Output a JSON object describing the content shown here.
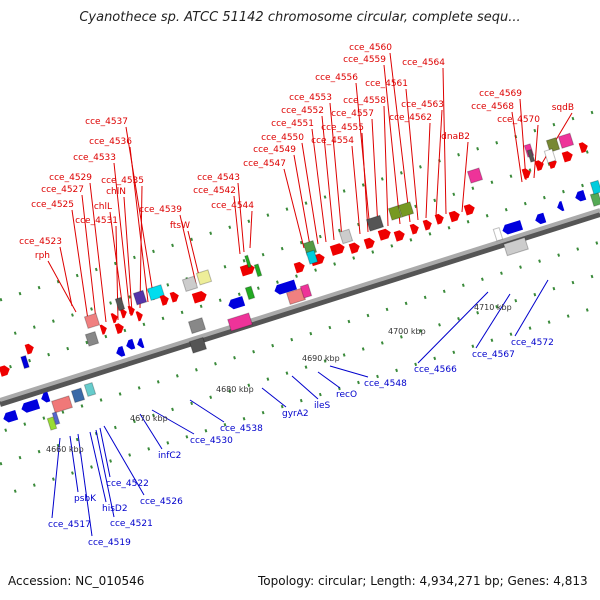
{
  "title": "Cyanothece sp. ATCC 51142 chromosome circular, complete sequ...",
  "footer": {
    "accession": "Accession: NC_010546",
    "summary": "Topology: circular; Length: 4,934,271 bp; Genes: 4,813"
  },
  "colors": {
    "label_forward": "#dd0000",
    "label_reverse": "#0000cc",
    "gene_forward": "#ee0000",
    "gene_reverse": "#0000dd",
    "backbone": "#888888",
    "tick": "#3a8a3a"
  },
  "scale_labels": [
    "4660 kbp",
    "4670 kbp",
    "4680 kbp",
    "4690 kbp",
    "4700 kbp",
    "4710 kbp"
  ],
  "forward_labels": [
    "cce_4523",
    "rph",
    "cce_4525",
    "cce_4527",
    "cce_4529",
    "cce_4531",
    "chlL",
    "cce_4533",
    "chlN",
    "cce_4535",
    "cce_4536",
    "cce_4537",
    "cce_4539",
    "ftsW",
    "cce_4542",
    "cce_4543",
    "cce_4544",
    "cce_4547",
    "cce_4549",
    "cce_4550",
    "cce_4551",
    "cce_4552",
    "cce_4553",
    "cce_4554",
    "cce_4555",
    "cce_4556",
    "cce_4557",
    "cce_4558",
    "cce_4559",
    "cce_4560",
    "cce_4561",
    "cce_4562",
    "cce_4563",
    "cce_4564",
    "dnaB2",
    "cce_4568",
    "cce_4569",
    "cce_4570",
    "sqdB"
  ],
  "reverse_labels": [
    "cce_4517",
    "psbK",
    "cce_4519",
    "hisD2",
    "cce_4521",
    "cce_4522",
    "cce_4526",
    "infC2",
    "cce_4530",
    "cce_4538",
    "gyrA2",
    "ileS",
    "recO",
    "cce_4548",
    "cce_4566",
    "cce_4567",
    "cce_4572"
  ]
}
